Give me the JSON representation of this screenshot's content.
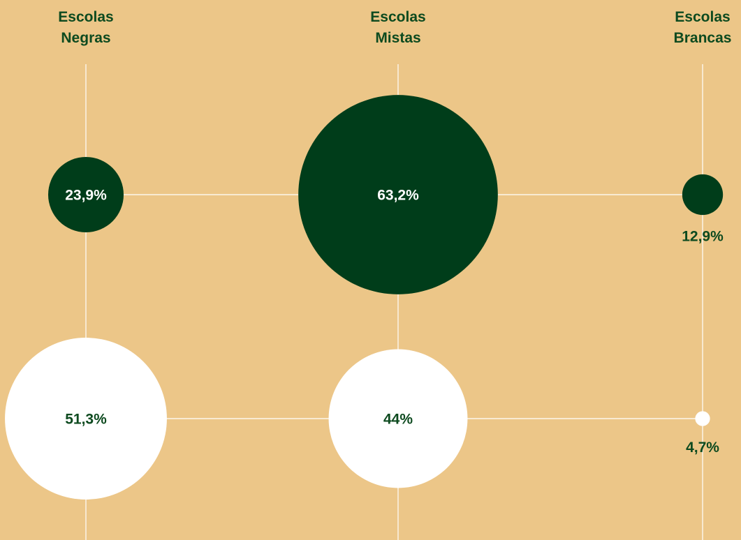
{
  "chart_data": {
    "type": "bubble",
    "categories": [
      "Escolas Negras",
      "Escolas Mistas",
      "Escolas Brancas"
    ],
    "series": [
      {
        "color": "#003d1a",
        "values": [
          23.9,
          63.2,
          12.9
        ],
        "value_labels": [
          "23,9%",
          "63,2%",
          "12,9%"
        ]
      },
      {
        "color": "#ffffff",
        "values": [
          51.3,
          44,
          4.7
        ],
        "value_labels": [
          "51,3%",
          "44%",
          "4,7%"
        ]
      }
    ]
  }
}
